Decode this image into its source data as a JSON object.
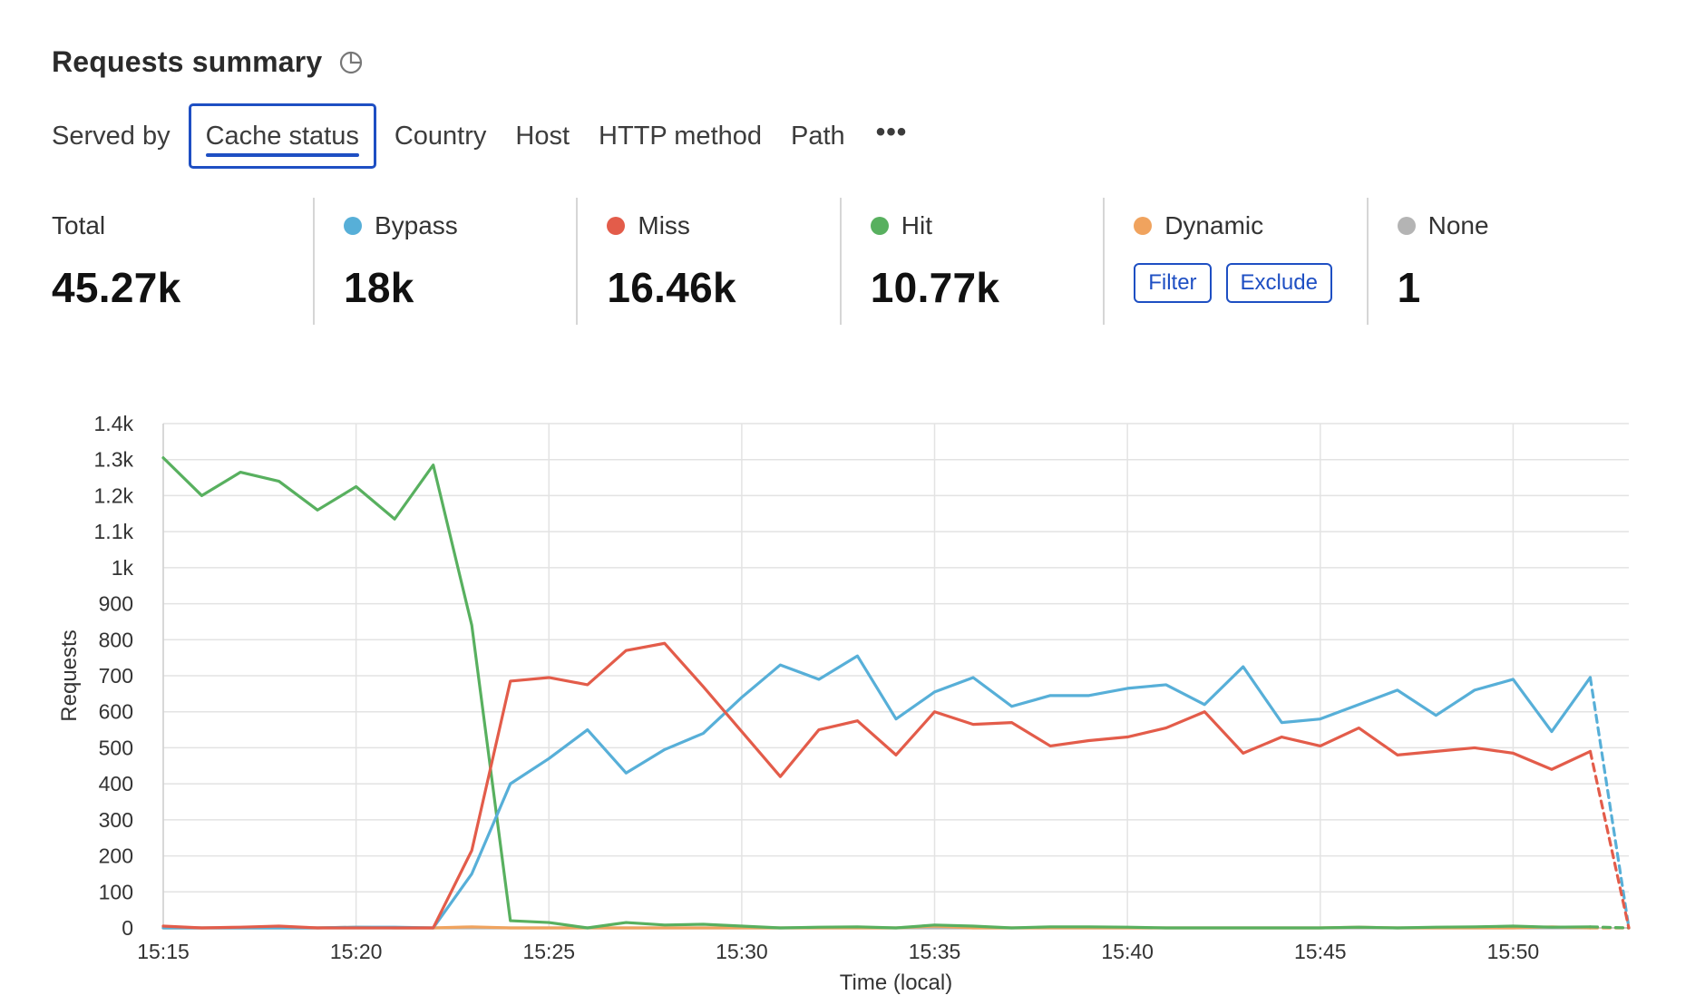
{
  "header": {
    "title": "Requests summary",
    "icon": "pie-chart-icon"
  },
  "tabs": [
    {
      "label": "Served by",
      "active": false
    },
    {
      "label": "Cache status",
      "active": true
    },
    {
      "label": "Country",
      "active": false
    },
    {
      "label": "Host",
      "active": false
    },
    {
      "label": "HTTP method",
      "active": false
    },
    {
      "label": "Path",
      "active": false
    }
  ],
  "tabs_more": "•••",
  "stats": {
    "total": {
      "label": "Total",
      "value": "45.27k"
    },
    "bypass": {
      "label": "Bypass",
      "value": "18k",
      "color": "#57afd8"
    },
    "miss": {
      "label": "Miss",
      "value": "16.46k",
      "color": "#e35c4a"
    },
    "hit": {
      "label": "Hit",
      "value": "10.77k",
      "color": "#58b05f"
    },
    "dynamic": {
      "label": "Dynamic",
      "color": "#f0a35e",
      "filter_label": "Filter",
      "exclude_label": "Exclude"
    },
    "none": {
      "label": "None",
      "value": "1",
      "color": "#b4b4b4"
    }
  },
  "chart_data": {
    "type": "line",
    "xlabel": "Time (local)",
    "ylabel": "Requests",
    "ylim": [
      0,
      1400
    ],
    "yticks": [
      "0",
      "100",
      "200",
      "300",
      "400",
      "500",
      "600",
      "700",
      "800",
      "900",
      "1k",
      "1.1k",
      "1.2k",
      "1.3k",
      "1.4k"
    ],
    "xticks": [
      "15:15",
      "15:20",
      "15:25",
      "15:30",
      "15:35",
      "15:40",
      "15:45",
      "15:50"
    ],
    "x_start_minute": 0,
    "x_end_minute": 38,
    "grid": true,
    "dashed_last_segment": true,
    "series": [
      {
        "name": "Hit",
        "color": "#58b05f",
        "values": [
          1305,
          1200,
          1265,
          1240,
          1160,
          1225,
          1135,
          1285,
          840,
          20,
          15,
          0,
          15,
          8,
          10,
          5,
          0,
          2,
          3,
          0,
          8,
          5,
          0,
          3,
          3,
          2,
          0,
          0,
          0,
          0,
          0,
          2,
          0,
          2,
          3,
          5,
          2,
          3,
          0
        ]
      },
      {
        "name": "Bypass",
        "color": "#57afd8",
        "values": [
          0,
          0,
          0,
          0,
          0,
          2,
          2,
          0,
          150,
          400,
          470,
          550,
          430,
          495,
          540,
          640,
          730,
          690,
          755,
          580,
          655,
          695,
          615,
          645,
          645,
          665,
          675,
          620,
          725,
          570,
          580,
          620,
          660,
          590,
          660,
          690,
          545,
          695,
          0
        ]
      },
      {
        "name": "Miss",
        "color": "#e35c4a",
        "values": [
          5,
          0,
          2,
          5,
          0,
          0,
          0,
          0,
          215,
          685,
          695,
          675,
          770,
          790,
          670,
          545,
          420,
          550,
          575,
          480,
          600,
          565,
          570,
          505,
          520,
          530,
          555,
          600,
          485,
          530,
          505,
          555,
          480,
          490,
          500,
          485,
          440,
          490,
          0
        ]
      },
      {
        "name": "Dynamic",
        "color": "#f0a35e",
        "values": [
          0,
          0,
          0,
          0,
          0,
          2,
          0,
          0,
          3,
          0,
          0,
          0,
          0,
          0,
          0,
          0,
          0,
          0,
          0,
          0,
          5,
          0,
          0,
          0,
          0,
          0,
          0,
          0,
          0,
          0,
          0,
          2,
          0,
          0,
          0,
          0,
          3,
          0,
          0
        ]
      },
      {
        "name": "None",
        "color": "#b4b4b4",
        "values": [
          0,
          0,
          0,
          0,
          0,
          0,
          0,
          0,
          0,
          0,
          0,
          0,
          0,
          0,
          0,
          0,
          0,
          0,
          0,
          0,
          0,
          0,
          0,
          0,
          0,
          0,
          0,
          0,
          0,
          0,
          0,
          0,
          0,
          0,
          0,
          0,
          0,
          0,
          0
        ]
      }
    ]
  }
}
